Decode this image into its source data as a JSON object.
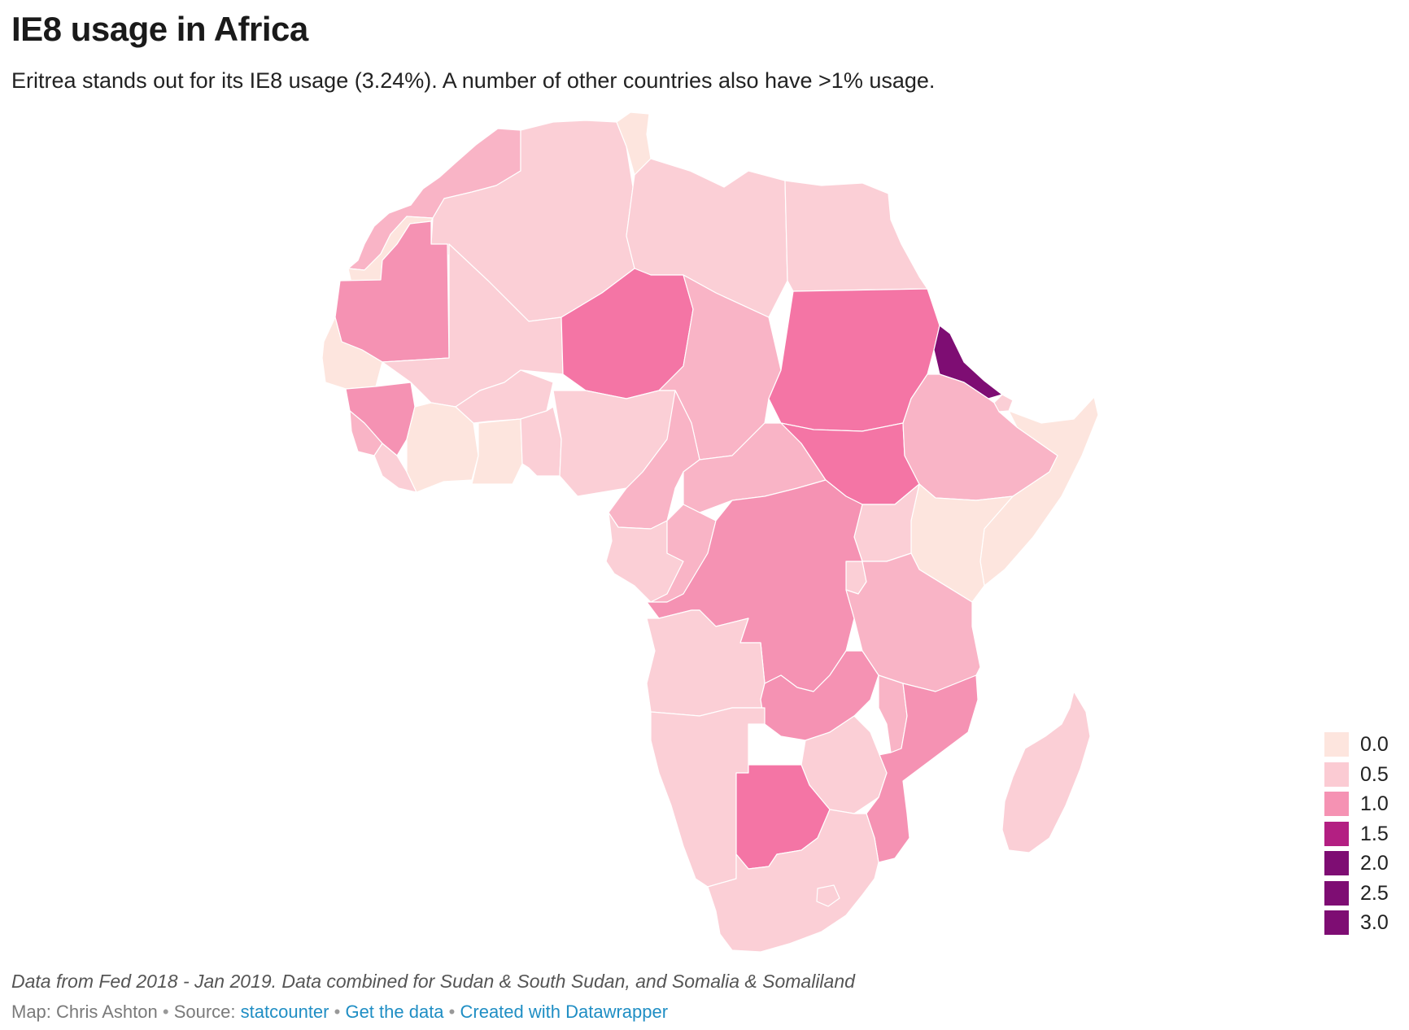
{
  "title": "IE8 usage in Africa",
  "subtitle": "Eritrea stands out for its IE8 usage (3.24%). A number of other countries also have >1% usage.",
  "notes": "Data from Fed 2018 - Jan 2019. Data combined for Sudan & South Sudan, and Somalia & Somaliland",
  "byline": {
    "map_prefix": "Map: Chris Ashton",
    "source_prefix": "Source:",
    "source_link": "statcounter",
    "get_data": "Get the data",
    "created_with": "Created with Datawrapper",
    "separator": "•"
  },
  "legend": [
    {
      "label": "0.0",
      "color": "#fde5de"
    },
    {
      "label": "0.5",
      "color": "#fbcbd3"
    },
    {
      "label": "1.0",
      "color": "#f592b3"
    },
    {
      "label": "1.5",
      "color": "#b31f82"
    },
    {
      "label": "2.0",
      "color": "#7e0d73"
    },
    {
      "label": "2.5",
      "color": "#7e0d73"
    },
    {
      "label": "3.0",
      "color": "#7e0d73"
    }
  ],
  "ocean_color": "#ffffff",
  "colors": {
    "c0": "#fde5de",
    "c05": "#fbcfd6",
    "c07": "#f9b4c6",
    "c1": "#f592b3",
    "c12": "#f475a5",
    "c3": "#7e0d73"
  }
}
